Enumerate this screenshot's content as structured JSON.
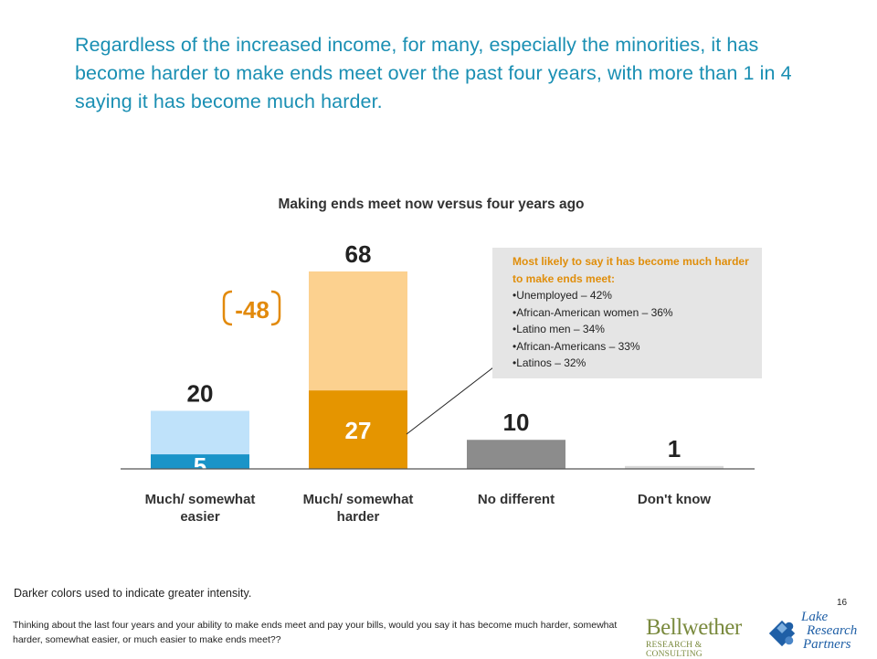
{
  "headline": "Regardless of the increased income, for many, especially the minorities, it has become harder to make ends meet over the past four years, with more than 1 in 4 saying it has become much harder.",
  "callout": {
    "title": "Most likely to say it has become much harder to make ends meet:",
    "items": [
      "•Unemployed – 42%",
      "•African-American women – 36%",
      "•Latino men – 34%",
      "•African-Americans – 33%",
      "•Latinos – 32%"
    ]
  },
  "footer": {
    "note": "Darker colors used to indicate greater intensity.",
    "question": "Thinking about the last four years and your ability to make ends meet and pay your bills, would you say it has become much harder, somewhat harder, somewhat easier, or much easier to make ends meet??",
    "page_number": "16"
  },
  "logos": {
    "bellwether_name": "Bellwether",
    "bellwether_sub": "RESEARCH & CONSULTING",
    "lake_line1": "Lake",
    "lake_line2": "Research",
    "lake_line3": "Partners"
  },
  "chart_data": {
    "type": "bar",
    "title": "Making ends meet now versus four years ago",
    "categories": [
      "Much/ somewhat easier",
      "Much/ somewhat harder",
      "No different",
      "Don't know"
    ],
    "values": [
      20,
      68,
      10,
      1
    ],
    "intensity_values": [
      5,
      27,
      null,
      null
    ],
    "bar_colors": [
      "#bfe2fa",
      "#fcd18f",
      "#8c8c8c",
      "#d9d9d9"
    ],
    "intensity_colors": [
      "#1a94c8",
      "#e59500",
      null,
      null
    ],
    "difference_label": "-48",
    "difference_color": "#e28a0c",
    "ylim": [
      0,
      68
    ],
    "grid": false,
    "legend": "none"
  }
}
